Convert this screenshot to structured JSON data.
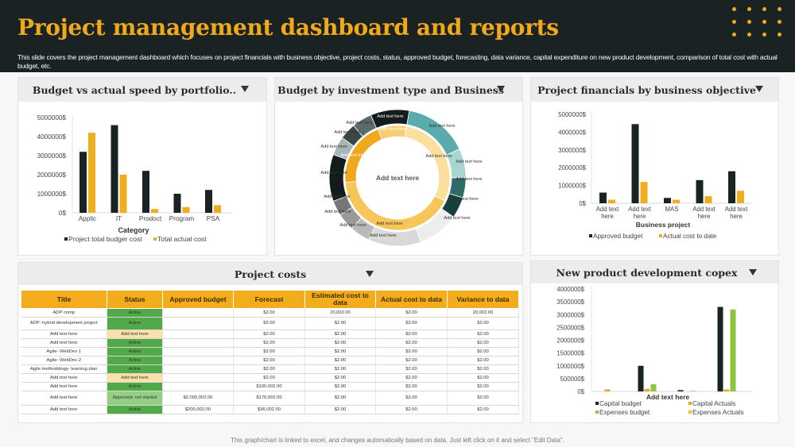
{
  "header": {
    "title": "Project management dashboard and reports",
    "description": "This slide covers the project management dashboard which focuses on project financials with business objective, project costs, status, approved budget, forecasting, data variance, capital expenditure on new product development, comparison of total cost with actual budget, etc."
  },
  "panels": {
    "budget_vs_actual": {
      "title": "Budget vs actual speed by portfolio.."
    },
    "investment": {
      "title": "Budget by  investment type and Business"
    },
    "financials": {
      "title": "Project financials by business objective"
    },
    "project_costs": {
      "title": "Project costs"
    },
    "capex": {
      "title": "New product development copex"
    }
  },
  "colors": {
    "dark": "#1a2324",
    "accent": "#f0ad1c",
    "green": "#8cc63f",
    "header_bg": "#1b2224",
    "status_active": "#52a947",
    "status_pending": "#fbe0a9",
    "status_approved": "#93cf83"
  },
  "project_costs": {
    "columns": [
      "Title",
      "Status",
      "Approved budget",
      "Forecast",
      "Estimated cost to data",
      "Actual cost to data",
      "Variance to data"
    ],
    "rows": [
      [
        "ADP comp",
        "Active",
        "",
        "$2.00",
        "20,002.00",
        "$2.00",
        "20,002.00"
      ],
      [
        "ADP- hybrid development  project",
        "Active",
        "",
        "$2.00",
        "$2.00",
        "$2.00",
        "$2.00"
      ],
      [
        "Add text here",
        "Add text here",
        "",
        "$2.00",
        "$2.00",
        "$2.00",
        "$2.00"
      ],
      [
        "Add text here",
        "Active",
        "",
        "$2.00",
        "$2.00",
        "$2.00",
        "$2.00"
      ],
      [
        "Agile- WebDev 1",
        "Active",
        "",
        "$2.00",
        "$2.00",
        "$2.00",
        "$2.00"
      ],
      [
        "Agile- WebDev 2",
        "Active",
        "",
        "$2.00",
        "$2.00",
        "$2.00",
        "$2.00"
      ],
      [
        "Agile methodology- learning plan",
        "Active",
        "",
        "$2.00",
        "$2.00",
        "$2.00",
        "$2.00"
      ],
      [
        "Add text here",
        "Add text here",
        "",
        "$2.00",
        "$2.00",
        "$2.00",
        "$2.00"
      ],
      [
        "Add text here",
        "Active",
        "",
        "$100,002.00",
        "$2.00",
        "$2.00",
        "$2.00"
      ],
      [
        "Add text here",
        "Approved- not started",
        "$2,000,002.00",
        "$170,002.00",
        "$2.00",
        "$2.00",
        "$2.00"
      ],
      [
        "Add text here",
        "Active",
        "$200,002.00",
        "$36,002.00",
        "$2.00",
        "$2.00",
        "$2.00"
      ]
    ]
  },
  "chart_data": [
    {
      "type": "bar",
      "xlabel": "Category",
      "categories": [
        "Applic",
        "IT",
        "Prodoct",
        "Program",
        "PSA"
      ],
      "yticks": [
        "0$",
        "1000000$",
        "2000000$",
        "3000000$",
        "4000000$",
        "5000000$"
      ],
      "ylim": [
        0,
        5000000
      ],
      "legend": "bottom",
      "series": [
        {
          "name": "Project total budger cost",
          "color": "#1a2324",
          "values": [
            3200000,
            4600000,
            2200000,
            1000000,
            1200000
          ]
        },
        {
          "name": "Total actual cost",
          "color": "#f0ad1c",
          "values": [
            4200000,
            2000000,
            200000,
            300000,
            400000
          ]
        }
      ]
    },
    {
      "type": "pie",
      "center_label": "Add text here",
      "segment_label": "Add text here",
      "inner_ring": [
        {
          "from": 338,
          "to": 370,
          "color": "#f7cf72"
        },
        {
          "from": 10,
          "to": 116,
          "color": "#fbdf9e"
        },
        {
          "from": 116,
          "to": 265,
          "color": "#f6c659"
        },
        {
          "from": 265,
          "to": 338,
          "color": "#f0a91d"
        }
      ],
      "outer_ring": [
        {
          "from": 337,
          "to": 370,
          "color": "#141b1c"
        },
        {
          "from": 10,
          "to": 65,
          "color": "#5aabab"
        },
        {
          "from": 65,
          "to": 90,
          "color": "#a8d4d2"
        },
        {
          "from": 90,
          "to": 107,
          "color": "#2f6b67"
        },
        {
          "from": 107,
          "to": 125,
          "color": "#17403c"
        },
        {
          "from": 125,
          "to": 160,
          "color": "#ededed"
        },
        {
          "from": 160,
          "to": 205,
          "color": "#d9d9d9"
        },
        {
          "from": 205,
          "to": 222,
          "color": "#b9b9b9"
        },
        {
          "from": 222,
          "to": 237,
          "color": "#9a9a9a"
        },
        {
          "from": 237,
          "to": 250,
          "color": "#777"
        },
        {
          "from": 250,
          "to": 290,
          "color": "#141b1c"
        },
        {
          "from": 290,
          "to": 306,
          "color": "#a6b6b6"
        },
        {
          "from": 306,
          "to": 320,
          "color": "#3c4647"
        },
        {
          "from": 320,
          "to": 337,
          "color": "#5b6a6b"
        }
      ]
    },
    {
      "type": "bar",
      "xlabel": "Business project",
      "categories": [
        "Add text here",
        "Add text here",
        "MAS",
        "Add text here",
        "Add text here"
      ],
      "yticks": [
        "0$",
        "1000000$",
        "2000000$",
        "3000000$",
        "4000000$",
        "5000000$"
      ],
      "ylim": [
        0,
        5000000
      ],
      "legend": "bottom",
      "series": [
        {
          "name": "Approved budget",
          "color": "#1a2324",
          "values": [
            600000,
            4450000,
            300000,
            1300000,
            1800000
          ]
        },
        {
          "name": "Actual cost to date",
          "color": "#f0ad1c",
          "values": [
            200000,
            1200000,
            200000,
            400000,
            700000
          ]
        }
      ]
    },
    {
      "type": "bar",
      "xlabel": "Add text here",
      "categories": [
        "",
        "",
        "",
        ""
      ],
      "yticks": [
        "0$",
        "500000$",
        "1000000$",
        "1500000$",
        "2000000$",
        "2500000$",
        "3000000$",
        "3500000$",
        "4000000$"
      ],
      "ylim": [
        0,
        4000000
      ],
      "legend": "bottom",
      "series": [
        {
          "name": "Capital budget",
          "color": "#1a2324",
          "values": [
            0,
            1000000,
            50000,
            3300000
          ]
        },
        {
          "name": "Capital Actuals",
          "color": "#eaa630",
          "values": [
            80000,
            100000,
            0,
            80000
          ]
        },
        {
          "name": "Expenses budget",
          "color": "#8cc63f",
          "values": [
            0,
            280000,
            20000,
            3200000
          ]
        },
        {
          "name": "Expenses Actuals",
          "color": "#f2c21b",
          "values": [
            0,
            0,
            0,
            0
          ]
        }
      ]
    }
  ],
  "footer": "This graph/chart is linked to excel, and changes automatically based on data. Just left click on it and select \"Edit Data\"."
}
